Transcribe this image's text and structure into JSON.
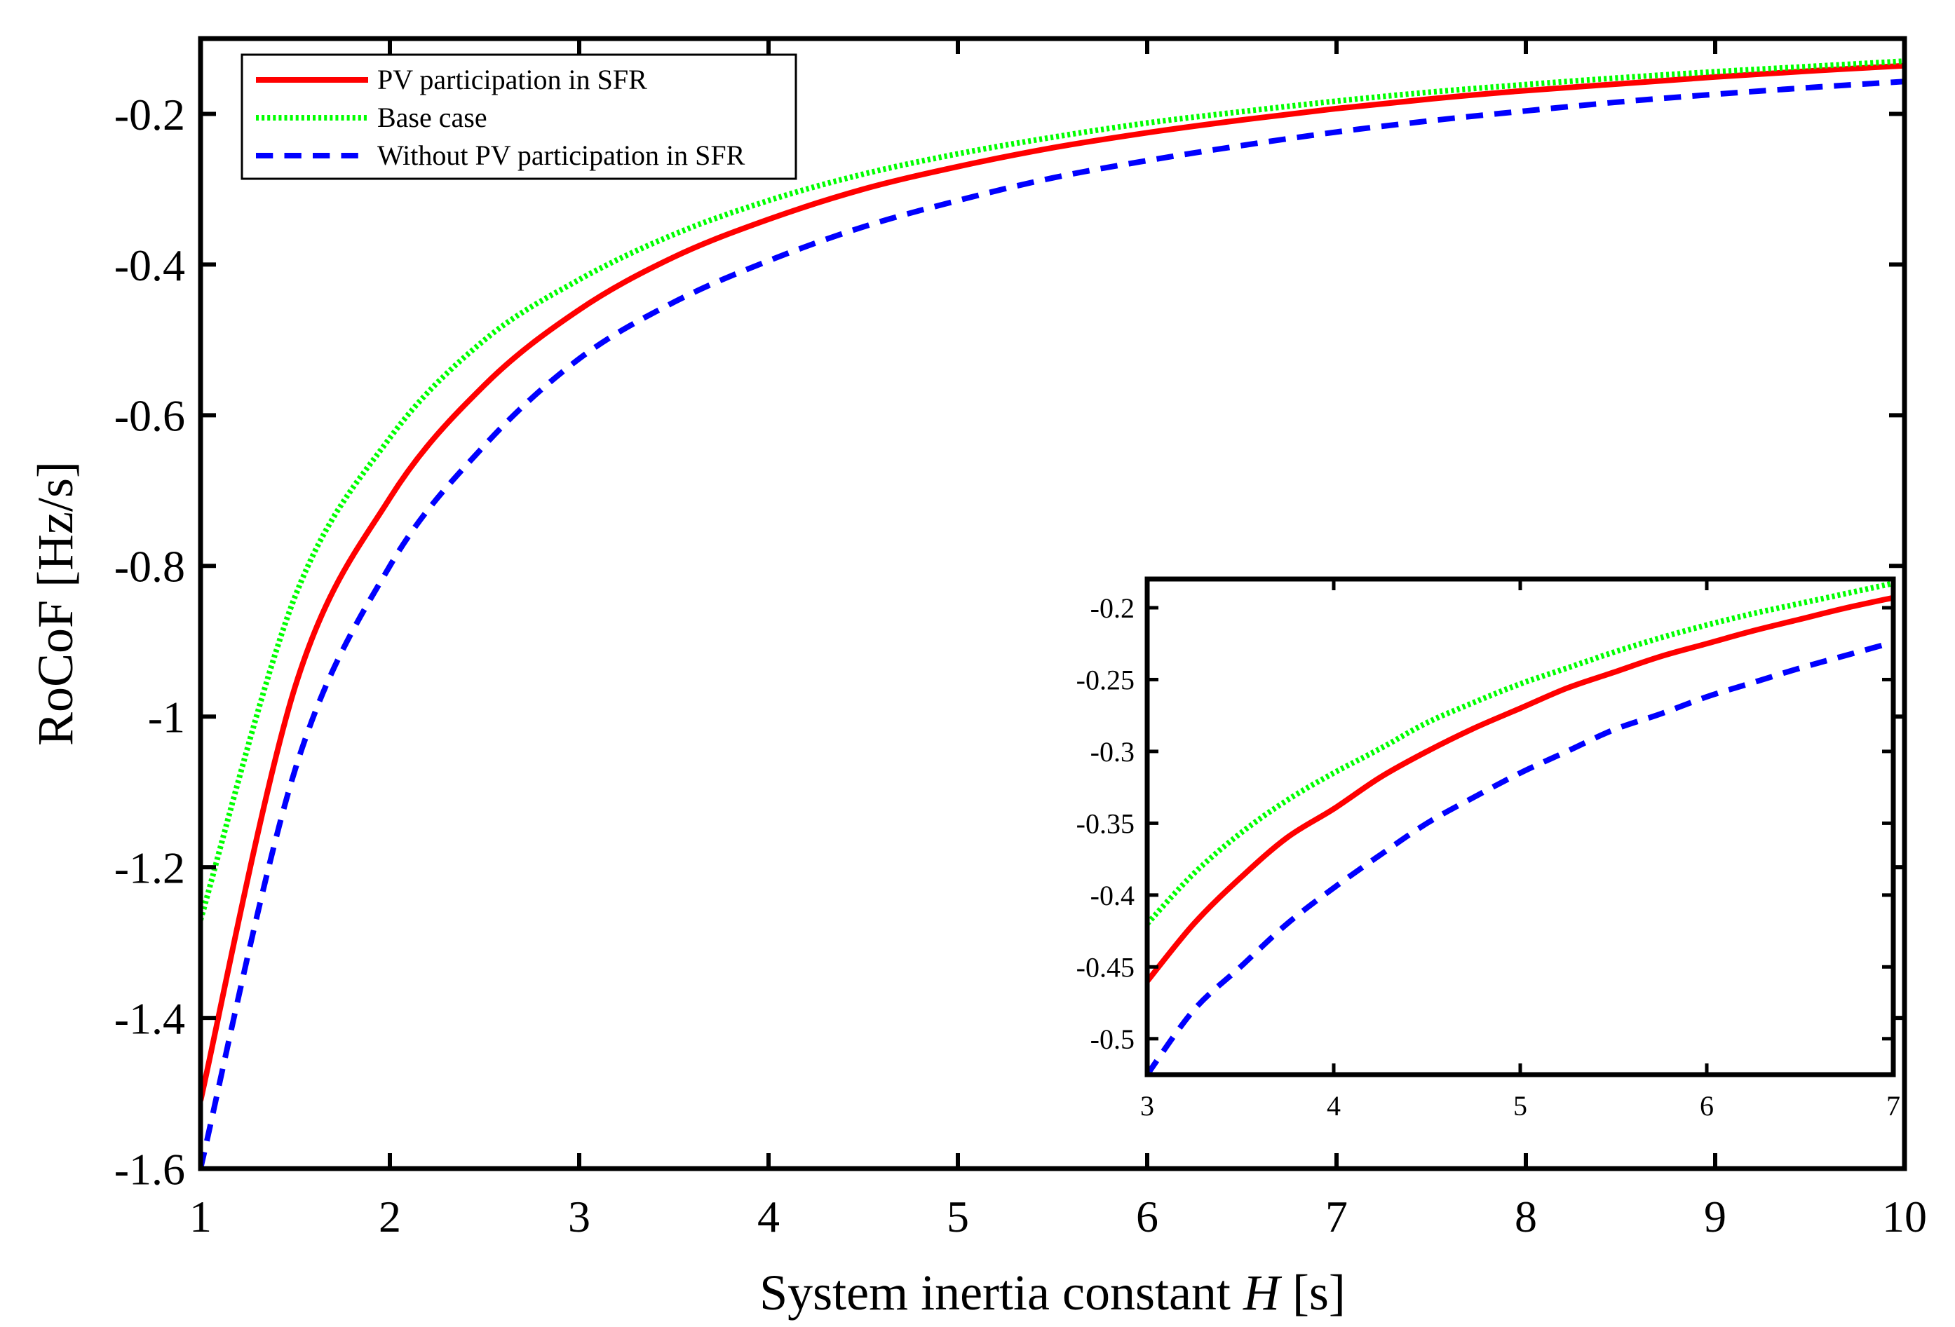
{
  "chart_data": [
    {
      "type": "line",
      "id": "main",
      "title": "",
      "xlabel_prefix": "System inertia constant ",
      "xlabel_var": "H",
      "xlabel_suffix": " [s]",
      "ylabel": "RoCoF [Hz/s]",
      "xlim": [
        1,
        10
      ],
      "ylim": [
        -1.6,
        -0.1
      ],
      "xticks": [
        1,
        2,
        3,
        4,
        5,
        6,
        7,
        8,
        9,
        10
      ],
      "xtick_labels": [
        "1",
        "2",
        "3",
        "4",
        "5",
        "6",
        "7",
        "8",
        "9",
        "10"
      ],
      "yticks": [
        -1.6,
        -1.4,
        -1.2,
        -1,
        -0.8,
        -0.6,
        -0.4,
        -0.2
      ],
      "ytick_labels": [
        "-1.6",
        "-1.4",
        "-1.2",
        "-1",
        "-0.8",
        "-0.6",
        "-0.4",
        "-0.2"
      ],
      "grid": false,
      "legend_position": "top-left",
      "x": [
        1,
        1.5,
        2,
        2.5,
        3,
        3.5,
        4,
        4.5,
        5,
        5.5,
        6,
        6.5,
        7,
        7.5,
        8,
        8.5,
        9,
        9.5,
        10
      ],
      "series": [
        {
          "name": "PV participation in SFR",
          "color": "#ff0000",
          "dash": "solid",
          "values": [
            -1.51,
            -0.96,
            -0.71,
            -0.56,
            -0.46,
            -0.39,
            -0.34,
            -0.3,
            -0.27,
            -0.245,
            -0.225,
            -0.208,
            -0.193,
            -0.18,
            -0.169,
            -0.16,
            -0.151,
            -0.143,
            -0.136
          ]
        },
        {
          "name": "Base case",
          "color": "#00ff00",
          "dash": "dotted",
          "values": [
            -1.27,
            -0.84,
            -0.63,
            -0.5,
            -0.42,
            -0.36,
            -0.315,
            -0.28,
            -0.253,
            -0.231,
            -0.212,
            -0.197,
            -0.183,
            -0.171,
            -0.161,
            -0.152,
            -0.144,
            -0.137,
            -0.13
          ]
        },
        {
          "name": "Without PV participation in SFR",
          "color": "#0000ff",
          "dash": "dashed",
          "values": [
            -1.6,
            -1.07,
            -0.8,
            -0.64,
            -0.525,
            -0.45,
            -0.395,
            -0.35,
            -0.315,
            -0.285,
            -0.262,
            -0.242,
            -0.224,
            -0.209,
            -0.196,
            -0.184,
            -0.174,
            -0.165,
            -0.157
          ]
        }
      ]
    },
    {
      "type": "line",
      "id": "inset",
      "title": "",
      "xlabel": "",
      "ylabel": "",
      "xlim": [
        3,
        7
      ],
      "ylim": [
        -0.525,
        -0.18
      ],
      "xticks": [
        3,
        4,
        5,
        6,
        7
      ],
      "xtick_labels": [
        "3",
        "4",
        "5",
        "6",
        "7"
      ],
      "yticks": [
        -0.5,
        -0.45,
        -0.4,
        -0.35,
        -0.3,
        -0.25,
        -0.2
      ],
      "ytick_labels": [
        "-0.5",
        "-0.45",
        "-0.4",
        "-0.35",
        "-0.3",
        "-0.25",
        "-0.2"
      ],
      "grid": false,
      "x": [
        3,
        3.25,
        3.5,
        3.75,
        4,
        4.25,
        4.5,
        4.75,
        5,
        5.25,
        5.5,
        5.75,
        6,
        6.25,
        6.5,
        6.75,
        7
      ],
      "series": [
        {
          "name": "PV participation in SFR",
          "color": "#ff0000",
          "dash": "solid",
          "values": [
            -0.46,
            -0.42,
            -0.388,
            -0.36,
            -0.34,
            -0.318,
            -0.3,
            -0.284,
            -0.27,
            -0.256,
            -0.245,
            -0.234,
            -0.225,
            -0.216,
            -0.208,
            -0.2,
            -0.193
          ]
        },
        {
          "name": "Base case",
          "color": "#00ff00",
          "dash": "dotted",
          "values": [
            -0.42,
            -0.385,
            -0.357,
            -0.334,
            -0.315,
            -0.298,
            -0.28,
            -0.266,
            -0.253,
            -0.242,
            -0.231,
            -0.221,
            -0.212,
            -0.204,
            -0.197,
            -0.19,
            -0.183
          ]
        },
        {
          "name": "Without PV participation in SFR",
          "color": "#0000ff",
          "dash": "dashed",
          "values": [
            -0.525,
            -0.48,
            -0.45,
            -0.42,
            -0.395,
            -0.372,
            -0.35,
            -0.332,
            -0.315,
            -0.3,
            -0.285,
            -0.274,
            -0.262,
            -0.252,
            -0.242,
            -0.233,
            -0.224
          ]
        }
      ]
    }
  ]
}
